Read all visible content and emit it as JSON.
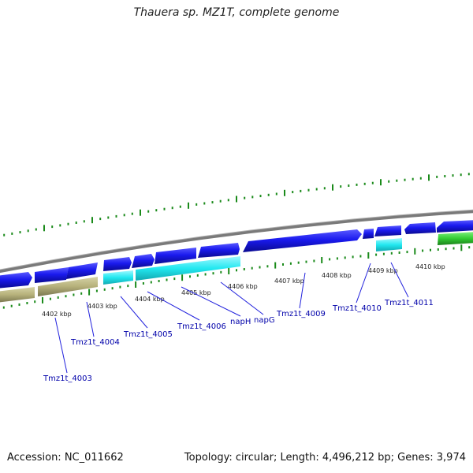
{
  "title": "Thauera sp. MZ1T, complete genome",
  "footer": {
    "accession": "Accession: NC_011662",
    "summary": "Topology: circular; Length: 4,496,212 bp; Genes: 3,974"
  },
  "colors": {
    "backbone": "#808080",
    "tick": "#1a8a1a",
    "gene_forward": "#1a1aee",
    "gene_cyan": "#22e8f0",
    "gene_olive": "#b5b07a",
    "gene_green": "#33cc33",
    "label": "#0000aa",
    "leader": "#2222dd"
  },
  "scale": {
    "unit": "kbp",
    "ticks": [
      "4402 kbp",
      "4403 kbp",
      "4404 kbp",
      "4405 kbp",
      "4406 kbp",
      "4407 kbp",
      "4408 kbp",
      "4409 kbp",
      "4410 kbp"
    ]
  },
  "genes": [
    {
      "label": "Tmz1t_4003"
    },
    {
      "label": "Tmz1t_4004"
    },
    {
      "label": "Tmz1t_4005"
    },
    {
      "label": "Tmz1t_4006"
    },
    {
      "label": "napH"
    },
    {
      "label": "napG"
    },
    {
      "label": "Tmz1t_4009"
    },
    {
      "label": "Tmz1t_4010"
    },
    {
      "label": "Tmz1t_4011"
    }
  ]
}
